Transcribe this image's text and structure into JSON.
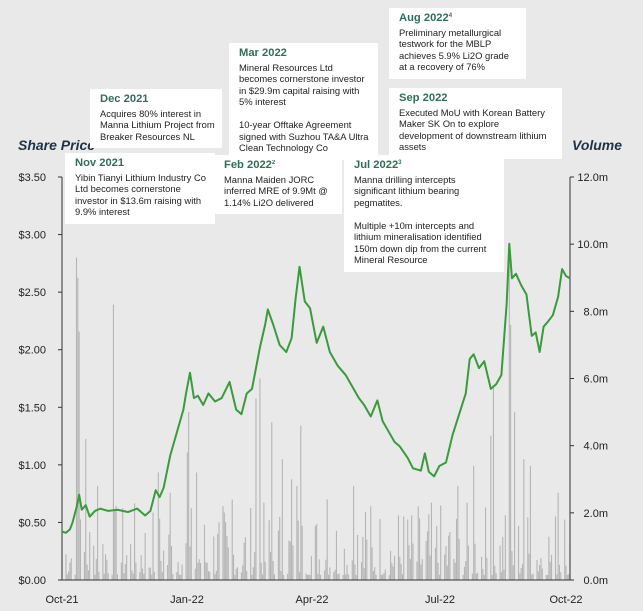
{
  "colors": {
    "line": "#3a9a3c",
    "bars": "#b5b5b5",
    "annotation_date": "#2f6f55",
    "axis_title": "#1f3347",
    "background": "#e9e9e9"
  },
  "axis_titles": {
    "left": "Share Price",
    "right": "Volume"
  },
  "annotations": [
    {
      "id": "nov-2021",
      "date": "Nov 2021",
      "sup": "",
      "text": "Yibin Tianyi Lithium Industry Co Ltd becomes cornerstone investor in $13.6m raising with 9.9% interest"
    },
    {
      "id": "dec-2021",
      "date": "Dec 2021",
      "sup": "",
      "text": "Acquires 80% interest in Manna Lithium Project from Breaker Resources NL"
    },
    {
      "id": "feb-2022",
      "date": "Feb 2022",
      "sup": "2",
      "text": "Manna Maiden JORC inferred MRE of 9.9Mt @ 1.14% Li2O delivered"
    },
    {
      "id": "mar-2022",
      "date": "Mar 2022",
      "sup": "",
      "text": "Mineral Resources Ltd becomes cornerstone investor in $29.9m capital raising with 5% interest\n\n10-year Offtake Agreement signed with Suzhou TA&A Ultra Clean Technology Co"
    },
    {
      "id": "jul-2022",
      "date": "Jul 2022",
      "sup": "3",
      "text": "Manna drilling intercepts significant lithium bearing pegmatites.\n\nMultiple +10m intercepts and lithium mineralisation identified 150m down dip from the current Mineral Resource"
    },
    {
      "id": "aug-2022",
      "date": "Aug 2022",
      "sup": "4",
      "text": "Preliminary metallurgical testwork for the MBLP achieves 5.9% Li2O grade at a recovery of 76%"
    },
    {
      "id": "sep-2022",
      "date": "Sep 2022",
      "sup": "",
      "text": "Executed MoU with Korean Battery Maker SK On to explore development of downstream lithium assets"
    }
  ],
  "chart_data": {
    "type": "line",
    "x_tick_labels": [
      "Oct-21",
      "Jan-22",
      "Apr-22",
      "Jul-22",
      "Oct-22"
    ],
    "y_left": {
      "label": "Share Price",
      "ticks": [
        "$0.00",
        "$0.50",
        "$1.00",
        "$1.50",
        "$2.00",
        "$2.50",
        "$3.00",
        "$3.50"
      ],
      "range": [
        0,
        3.5
      ]
    },
    "y_right": {
      "label": "Volume",
      "ticks": [
        "0.0m",
        "2.0m",
        "4.0m",
        "6.0m",
        "8.0m",
        "10.0m",
        "12.0m"
      ],
      "range": [
        0,
        12
      ]
    },
    "price_keypoints": [
      [
        "2021-10-01",
        0.42
      ],
      [
        "2021-10-04",
        0.41
      ],
      [
        "2021-10-07",
        0.44
      ],
      [
        "2021-10-09",
        0.5
      ],
      [
        "2021-10-12",
        0.63
      ],
      [
        "2021-10-14",
        0.74
      ],
      [
        "2021-10-16",
        0.61
      ],
      [
        "2021-10-19",
        0.65
      ],
      [
        "2021-10-22",
        0.55
      ],
      [
        "2021-10-26",
        0.6
      ],
      [
        "2021-10-30",
        0.62
      ],
      [
        "2021-11-05",
        0.6
      ],
      [
        "2021-11-12",
        0.61
      ],
      [
        "2021-11-20",
        0.59
      ],
      [
        "2021-11-27",
        0.62
      ],
      [
        "2021-12-03",
        0.56
      ],
      [
        "2021-12-07",
        0.6
      ],
      [
        "2021-12-11",
        0.78
      ],
      [
        "2021-12-14",
        0.72
      ],
      [
        "2021-12-17",
        0.8
      ],
      [
        "2021-12-22",
        1.08
      ],
      [
        "2021-12-27",
        1.28
      ],
      [
        "2022-01-01",
        1.48
      ],
      [
        "2022-01-03",
        1.62
      ],
      [
        "2022-01-06",
        1.8
      ],
      [
        "2022-01-09",
        1.58
      ],
      [
        "2022-01-12",
        1.6
      ],
      [
        "2022-01-16",
        1.52
      ],
      [
        "2022-01-20",
        1.62
      ],
      [
        "2022-01-25",
        1.55
      ],
      [
        "2022-01-30",
        1.58
      ],
      [
        "2022-02-05",
        1.72
      ],
      [
        "2022-02-10",
        1.48
      ],
      [
        "2022-02-14",
        1.44
      ],
      [
        "2022-02-18",
        1.62
      ],
      [
        "2022-02-22",
        1.66
      ],
      [
        "2022-02-28",
        2.02
      ],
      [
        "2022-03-04",
        2.22
      ],
      [
        "2022-03-06",
        2.35
      ],
      [
        "2022-03-10",
        2.22
      ],
      [
        "2022-03-15",
        2.04
      ],
      [
        "2022-03-20",
        1.98
      ],
      [
        "2022-03-24",
        2.1
      ],
      [
        "2022-03-27",
        2.44
      ],
      [
        "2022-03-30",
        2.72
      ],
      [
        "2022-04-03",
        2.42
      ],
      [
        "2022-04-07",
        2.36
      ],
      [
        "2022-04-12",
        2.06
      ],
      [
        "2022-04-17",
        2.2
      ],
      [
        "2022-04-22",
        1.98
      ],
      [
        "2022-04-28",
        1.86
      ],
      [
        "2022-05-04",
        1.78
      ],
      [
        "2022-05-10",
        1.66
      ],
      [
        "2022-05-14",
        1.58
      ],
      [
        "2022-05-18",
        1.52
      ],
      [
        "2022-05-23",
        1.42
      ],
      [
        "2022-05-28",
        1.56
      ],
      [
        "2022-06-01",
        1.38
      ],
      [
        "2022-06-05",
        1.3
      ],
      [
        "2022-06-10",
        1.2
      ],
      [
        "2022-06-14",
        1.16
      ],
      [
        "2022-06-20",
        1.06
      ],
      [
        "2022-06-24",
        0.97
      ],
      [
        "2022-06-30",
        0.95
      ],
      [
        "2022-07-03",
        1.1
      ],
      [
        "2022-07-06",
        0.94
      ],
      [
        "2022-07-10",
        0.9
      ],
      [
        "2022-07-14",
        0.99
      ],
      [
        "2022-07-19",
        1.02
      ],
      [
        "2022-07-24",
        1.26
      ],
      [
        "2022-07-29",
        1.44
      ],
      [
        "2022-08-03",
        1.62
      ],
      [
        "2022-08-06",
        1.92
      ],
      [
        "2022-08-09",
        1.96
      ],
      [
        "2022-08-13",
        1.84
      ],
      [
        "2022-08-17",
        1.9
      ],
      [
        "2022-08-22",
        1.66
      ],
      [
        "2022-08-26",
        1.7
      ],
      [
        "2022-08-30",
        1.78
      ],
      [
        "2022-09-03",
        2.4
      ],
      [
        "2022-09-05",
        2.92
      ],
      [
        "2022-09-07",
        2.62
      ],
      [
        "2022-09-10",
        2.66
      ],
      [
        "2022-09-14",
        2.56
      ],
      [
        "2022-09-18",
        2.48
      ],
      [
        "2022-09-22",
        2.12
      ],
      [
        "2022-09-25",
        2.15
      ],
      [
        "2022-09-28",
        1.98
      ],
      [
        "2022-10-01",
        2.2
      ],
      [
        "2022-10-04",
        2.24
      ],
      [
        "2022-10-08",
        2.3
      ],
      [
        "2022-10-12",
        2.46
      ],
      [
        "2022-10-15",
        2.7
      ],
      [
        "2022-10-18",
        2.64
      ],
      [
        "2022-10-21",
        2.62
      ]
    ],
    "volume_spikes_m": [
      [
        "2021-10-12",
        9.6
      ],
      [
        "2021-10-13",
        9.0
      ],
      [
        "2021-10-14",
        7.4
      ],
      [
        "2021-10-19",
        4.2
      ],
      [
        "2021-10-23",
        3.4
      ],
      [
        "2021-10-28",
        2.8
      ],
      [
        "2021-11-09",
        8.2
      ],
      [
        "2021-12-13",
        3.2
      ],
      [
        "2021-12-22",
        2.6
      ],
      [
        "2022-01-04",
        3.8
      ],
      [
        "2022-01-05",
        5.0
      ],
      [
        "2022-01-11",
        3.2
      ],
      [
        "2022-02-07",
        2.4
      ],
      [
        "2022-02-25",
        5.4
      ],
      [
        "2022-02-28",
        6.0
      ],
      [
        "2022-03-09",
        4.7
      ],
      [
        "2022-03-17",
        3.6
      ],
      [
        "2022-03-24",
        3.0
      ],
      [
        "2022-03-28",
        2.8
      ],
      [
        "2022-03-31",
        4.6
      ],
      [
        "2022-04-02",
        5.2
      ],
      [
        "2022-04-20",
        2.4
      ],
      [
        "2022-05-10",
        2.8
      ],
      [
        "2022-05-23",
        2.2
      ],
      [
        "2022-06-20",
        1.8
      ],
      [
        "2022-07-23",
        2.4
      ],
      [
        "2022-07-28",
        2.8
      ],
      [
        "2022-08-09",
        3.4
      ],
      [
        "2022-08-22",
        4.3
      ],
      [
        "2022-08-24",
        5.8
      ],
      [
        "2022-09-03",
        8.2
      ],
      [
        "2022-09-05",
        9.7
      ],
      [
        "2022-09-06",
        7.6
      ],
      [
        "2022-09-09",
        5.0
      ],
      [
        "2022-09-16",
        3.6
      ],
      [
        "2022-09-21",
        3.4
      ],
      [
        "2022-10-12",
        2.6
      ],
      [
        "2022-10-17",
        1.8
      ]
    ]
  }
}
